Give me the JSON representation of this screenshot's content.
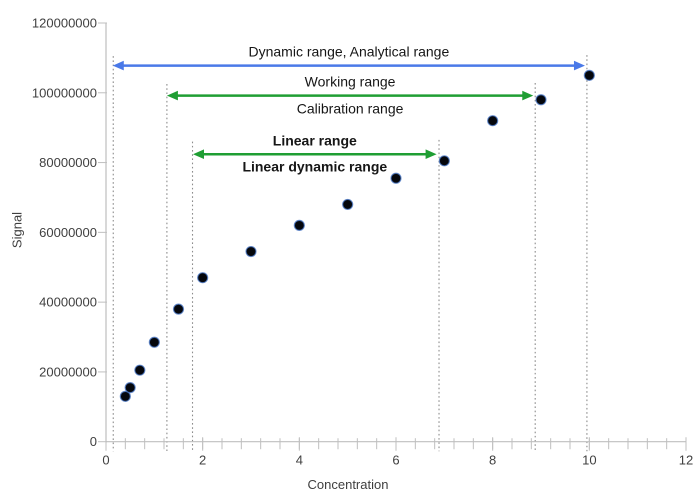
{
  "chart_data": {
    "type": "scatter",
    "title": "",
    "xlabel": "Concentration",
    "ylabel": "Signal",
    "xlim": [
      0,
      12
    ],
    "ylim": [
      0,
      120000000
    ],
    "grid": false,
    "legend": "none",
    "x_major_ticks": [
      0,
      2,
      4,
      6,
      8,
      10,
      12
    ],
    "x_minor_tick_step": 0.4,
    "y_ticks": [
      0,
      20000000,
      40000000,
      60000000,
      80000000,
      100000000,
      120000000
    ],
    "points": [
      {
        "x": 0.4,
        "y": 13000000
      },
      {
        "x": 0.5,
        "y": 15500000
      },
      {
        "x": 0.7,
        "y": 20500000
      },
      {
        "x": 1.0,
        "y": 28500000
      },
      {
        "x": 1.5,
        "y": 38000000
      },
      {
        "x": 2.0,
        "y": 47000000
      },
      {
        "x": 3.0,
        "y": 54500000
      },
      {
        "x": 4.0,
        "y": 62000000
      },
      {
        "x": 5.0,
        "y": 68000000
      },
      {
        "x": 6.0,
        "y": 75500000
      },
      {
        "x": 7.0,
        "y": 80500000
      },
      {
        "x": 8.0,
        "y": 92000000
      },
      {
        "x": 9.0,
        "y": 98000000
      },
      {
        "x": 10.0,
        "y": 105000000
      }
    ],
    "annotations": [
      {
        "above": "Dynamic range, Analytical range",
        "below": "",
        "x1": 0.14,
        "x2": 9.91,
        "y": 107800000,
        "color": "#4a79e8",
        "bold": false
      },
      {
        "above": "Working range",
        "below": "Calibration range",
        "x1": 1.26,
        "x2": 8.84,
        "y": 99200000,
        "color": "#1f9e33",
        "bold": false
      },
      {
        "above": "Linear range",
        "below": "Linear dynamic range",
        "x1": 1.8,
        "x2": 6.84,
        "y": 82400000,
        "color": "#1f9e33",
        "bold": true
      }
    ],
    "boundary_lines": [
      {
        "x": 0.15,
        "top": 110500000
      },
      {
        "x": 1.26,
        "top": 102500000
      },
      {
        "x": 1.79,
        "top": 86000000
      },
      {
        "x": 6.89,
        "top": 86500000
      },
      {
        "x": 8.88,
        "top": 102800000
      },
      {
        "x": 9.95,
        "top": 110800000
      }
    ],
    "colors": {
      "marker_fill": "#05070c",
      "marker_edge": "#4a78c8",
      "axis_line": "#bfbfbf",
      "boundary_line": "#8c8c8c",
      "tick_label": "#3f3f3f",
      "annotation_text": "#161616"
    }
  }
}
